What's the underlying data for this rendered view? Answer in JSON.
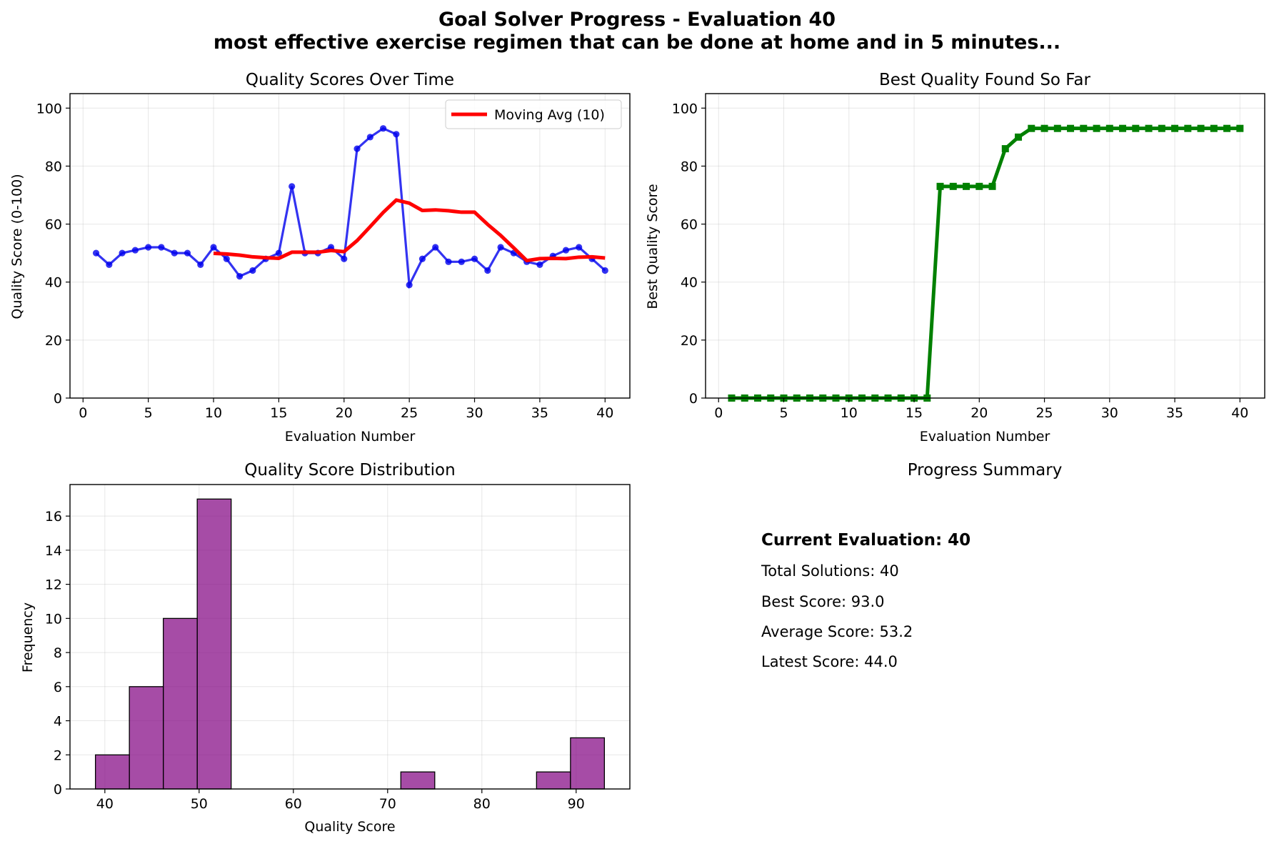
{
  "figure": {
    "suptitle_line1": "Goal Solver Progress - Evaluation 40",
    "suptitle_line2": "most effective exercise regimen that can be done at home and in 5 minutes..."
  },
  "chart_data": [
    {
      "id": "quality",
      "type": "line",
      "title": "Quality Scores Over Time",
      "xlabel": "Evaluation Number",
      "ylabel": "Quality Score (0-100)",
      "xlim": [
        -1,
        41.9
      ],
      "ylim": [
        0,
        105
      ],
      "xticks": [
        0,
        5,
        10,
        15,
        20,
        25,
        30,
        35,
        40
      ],
      "yticks": [
        0,
        20,
        40,
        60,
        80,
        100
      ],
      "grid": true,
      "legend": "top-right",
      "series": [
        {
          "color": "#0000ee",
          "marker": "circle",
          "x": [
            1,
            2,
            3,
            4,
            5,
            6,
            7,
            8,
            9,
            10,
            11,
            12,
            13,
            14,
            15,
            16,
            17,
            18,
            19,
            20,
            21,
            22,
            23,
            24,
            25,
            26,
            27,
            28,
            29,
            30,
            31,
            32,
            33,
            34,
            35,
            36,
            37,
            38,
            39,
            40
          ],
          "y": [
            50,
            46,
            50,
            51,
            52,
            52,
            50,
            50,
            46,
            52,
            48,
            42,
            44,
            48,
            50,
            73,
            50,
            50,
            52,
            48,
            86,
            90,
            93,
            91,
            39,
            48,
            52,
            47,
            47,
            48,
            44,
            52,
            50,
            47,
            46,
            49,
            51,
            52,
            48,
            44
          ]
        },
        {
          "name": "Moving Avg (10)",
          "color": "#ff0000",
          "marker": "none",
          "x": [
            10,
            11,
            12,
            13,
            14,
            15,
            16,
            17,
            18,
            19,
            20,
            21,
            22,
            23,
            24,
            25,
            26,
            27,
            28,
            29,
            30,
            31,
            32,
            33,
            34,
            35,
            36,
            37,
            38,
            39,
            40
          ],
          "y": [
            49.9,
            49.7,
            49.3,
            48.7,
            48.4,
            48.2,
            50.3,
            50.3,
            50.3,
            50.9,
            50.5,
            54.3,
            59.1,
            64.0,
            68.3,
            67.2,
            64.7,
            64.9,
            64.6,
            64.1,
            64.1,
            59.9,
            56.1,
            51.8,
            47.4,
            48.1,
            48.2,
            48.1,
            48.6,
            48.7,
            48.3
          ]
        }
      ]
    },
    {
      "id": "best",
      "type": "line",
      "title": "Best Quality Found So Far",
      "xlabel": "Evaluation Number",
      "ylabel": "Best Quality Score",
      "xlim": [
        -1,
        41.9
      ],
      "ylim": [
        0,
        105
      ],
      "xticks": [
        0,
        5,
        10,
        15,
        20,
        25,
        30,
        35,
        40
      ],
      "yticks": [
        0,
        20,
        40,
        60,
        80,
        100
      ],
      "grid": true,
      "series": [
        {
          "color": "#008000",
          "marker": "square",
          "x": [
            1,
            2,
            3,
            4,
            5,
            6,
            7,
            8,
            9,
            10,
            11,
            12,
            13,
            14,
            15,
            16,
            17,
            18,
            19,
            20,
            21,
            22,
            23,
            24,
            25,
            26,
            27,
            28,
            29,
            30,
            31,
            32,
            33,
            34,
            35,
            36,
            37,
            38,
            39,
            40
          ],
          "y": [
            0,
            0,
            0,
            0,
            0,
            0,
            0,
            0,
            0,
            0,
            0,
            0,
            0,
            0,
            0,
            0,
            73,
            73,
            73,
            73,
            73,
            86,
            90,
            93,
            93,
            93,
            93,
            93,
            93,
            93,
            93,
            93,
            93,
            93,
            93,
            93,
            93,
            93,
            93,
            93
          ]
        }
      ]
    },
    {
      "id": "hist",
      "type": "bar",
      "title": "Quality Score Distribution",
      "xlabel": "Quality Score",
      "ylabel": "Frequency",
      "xlim": [
        36.3,
        95.7
      ],
      "ylim": [
        0,
        17.85
      ],
      "xticks": [
        40,
        50,
        60,
        70,
        80,
        90
      ],
      "yticks": [
        0,
        2,
        4,
        6,
        8,
        10,
        12,
        14,
        16
      ],
      "grid": true,
      "color": "#800080",
      "bin_edges": [
        39,
        42.6,
        46.2,
        49.8,
        53.4,
        57,
        60.6,
        64.2,
        67.8,
        71.4,
        75,
        78.6,
        82.2,
        85.8,
        89.4,
        93
      ],
      "counts": [
        2,
        6,
        10,
        17,
        0,
        0,
        0,
        0,
        0,
        1,
        0,
        0,
        0,
        1,
        3
      ]
    }
  ],
  "summary": {
    "title": "Progress Summary",
    "current": "Current Evaluation: 40",
    "total": "Total Solutions: 40",
    "best": "Best Score: 93.0",
    "average": "Average Score: 53.2",
    "latest": "Latest Score: 44.0"
  }
}
